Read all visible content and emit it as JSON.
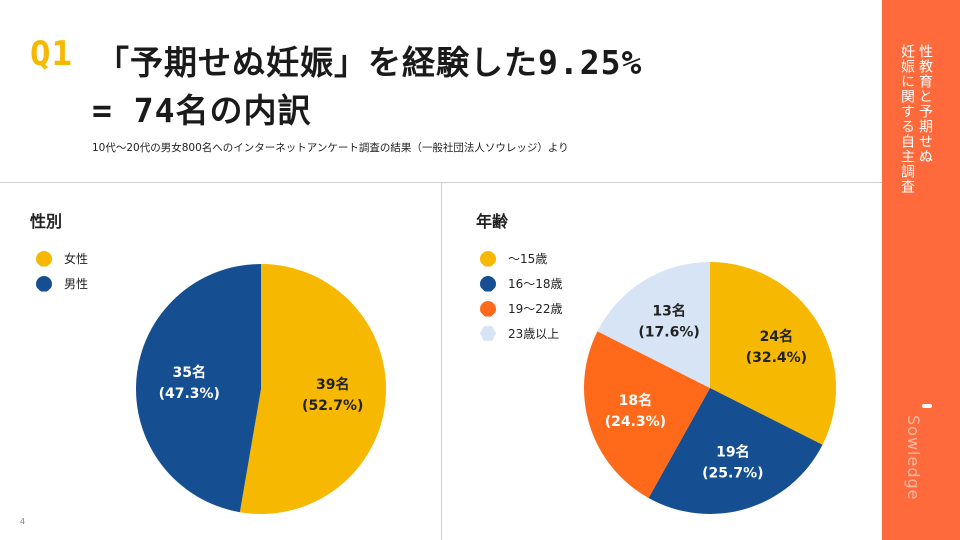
{
  "header": {
    "q_label": "Q1",
    "title_line1": "「予期せぬ妊娠」を経験した9.25%",
    "title_line2": "= 74名の内訳",
    "subtitle": "10代～20代の男女800名へのインターネットアンケート調査の結果（一般社団法人ソウレッジ）より"
  },
  "side": {
    "text_line1": "性教育と予期せぬ",
    "text_line2": "妊娠に関する自主調査",
    "logo": "Sowledge",
    "accent": "#ff6a3d"
  },
  "page_number": "4",
  "chart_data": [
    {
      "type": "pie",
      "title": "性別",
      "categories": [
        "女性",
        "男性"
      ],
      "values": [
        39,
        35
      ],
      "data_labels": [
        [
          "39名",
          "(52.7%)"
        ],
        [
          "35名",
          "(47.3%)"
        ]
      ],
      "colors": [
        "#f6b800",
        "#154f91"
      ],
      "legend": "top-left"
    },
    {
      "type": "pie",
      "title": "年齢",
      "categories": [
        "～15歳",
        "16～18歳",
        "19～22歳",
        "23歳以上"
      ],
      "values": [
        24,
        19,
        18,
        13
      ],
      "data_labels": [
        [
          "24名",
          "(32.4%)"
        ],
        [
          "19名",
          "(25.7%)"
        ],
        [
          "18名",
          "(24.3%)"
        ],
        [
          "13名",
          "(17.6%)"
        ]
      ],
      "colors": [
        "#f6b800",
        "#154f91",
        "#ff6a1a",
        "#d6e4f5"
      ],
      "legend": "top-left"
    }
  ]
}
